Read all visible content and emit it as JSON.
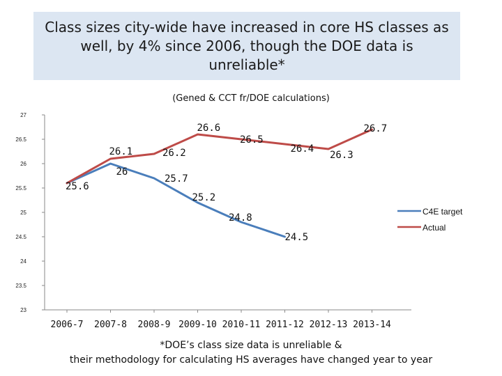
{
  "title": "Class sizes city-wide have increased in core HS classes as well, by 4% since 2006, though the DOE data is unreliable*",
  "subtitle": "(Gened & CCT fr/DOE calculations)",
  "footnote_line1": "*DOE’s class size data is unreliable &",
  "footnote_line2": "their methodology for calculating HS averages have changed year to year",
  "chart_data": {
    "type": "line",
    "categories": [
      "2006-7",
      "2007-8",
      "2008-9",
      "2009-10",
      "2010-11",
      "2011-12",
      "2012-13",
      "2013-14"
    ],
    "ylim": [
      23,
      27
    ],
    "yticks": [
      23,
      23.5,
      24,
      24.5,
      25,
      25.5,
      26,
      26.5,
      27
    ],
    "grid": false,
    "legend_position": "right",
    "series": [
      {
        "name": "C4E target",
        "color": "#4a7ebb",
        "values": [
          25.6,
          26,
          25.7,
          25.2,
          24.8,
          24.5,
          null,
          null
        ],
        "labels": [
          "25.6",
          "26",
          "25.7",
          "25.2",
          "24.8",
          "24.5",
          null,
          null
        ]
      },
      {
        "name": "Actual",
        "color": "#be4b48",
        "values": [
          25.6,
          26.1,
          26.2,
          26.6,
          26.5,
          26.4,
          26.3,
          26.7
        ],
        "labels": [
          null,
          "26.1",
          "26.2",
          "26.6",
          "26.5",
          "26.4",
          "26.3",
          "26.7"
        ]
      }
    ]
  }
}
